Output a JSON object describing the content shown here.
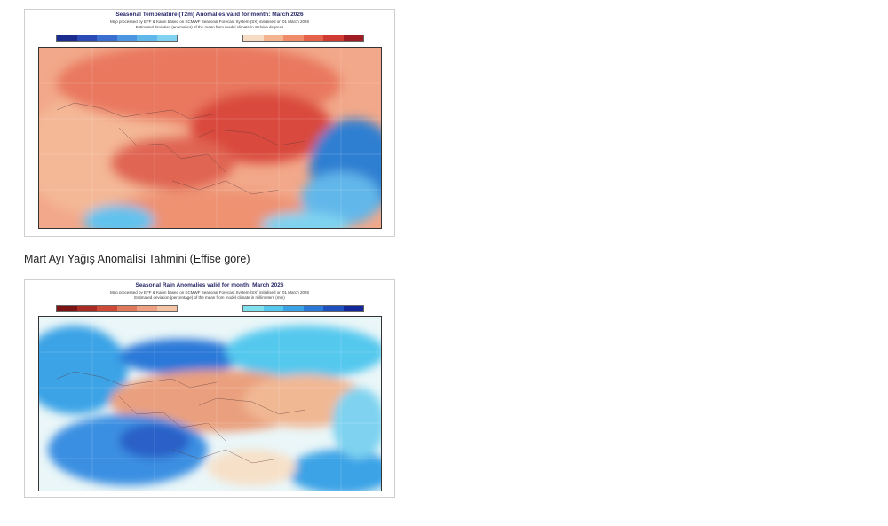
{
  "temperature_map": {
    "title": "Seasonal Temperature (T2m) Anomalies valid for month: March 2026",
    "subtitle1": "Map processed by EFF & Kaion based on ECMWF Seasonal Forecast System (SX) initialised on 01 March 2026",
    "subtitle2": "Estimated deviation (anomalies) of the mean from model climate in Celsius degrees",
    "colors_negative": [
      "#1b2c8f",
      "#2a4bb5",
      "#3a6fd0",
      "#4c95e0",
      "#5fb7ea",
      "#7fd3f0"
    ],
    "colors_positive": [
      "#f7dcc4",
      "#f4b48f",
      "#ef8a6a",
      "#e4614c",
      "#cf3a33",
      "#9e1c22"
    ]
  },
  "caption": "Mart Ayı Yağış Anomalisi Tahmini (Effise göre)",
  "rain_map": {
    "title": "Seasonal Rain Anomalies valid for month: March 2026",
    "subtitle1": "Map processed by EFF & Kaion based on ECMWF Seasonal Forecast System (SX) initialised on 01 March 2026",
    "subtitle2": "Estimated deviation (percentage) of the mean from model climate in millimeters (mm)",
    "colors_dry": [
      "#7a1414",
      "#a82a22",
      "#cf4a36",
      "#e0785a",
      "#eea080",
      "#f4c4a4"
    ],
    "colors_wet": [
      "#7fe0ee",
      "#55c8ee",
      "#3aa3e6",
      "#2a78d8",
      "#1d4fbf",
      "#12289a"
    ]
  }
}
